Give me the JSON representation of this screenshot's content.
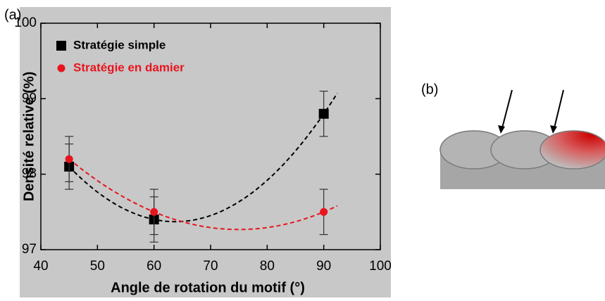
{
  "panel_labels": [
    "(a)",
    "(b)"
  ],
  "chart_data": {
    "type": "scatter",
    "xlabel": "Angle de rotation du motif (°)",
    "ylabel": "Densité relative (%)",
    "xlim": [
      40,
      100
    ],
    "xticks": [
      40,
      50,
      60,
      70,
      80,
      90,
      100
    ],
    "ylim": [
      97,
      100
    ],
    "yticks": [
      97,
      98,
      99,
      100
    ],
    "legend": "upper left",
    "series": [
      {
        "name": "Stratégie simple",
        "color": "#000000",
        "marker": "square",
        "x": [
          45,
          60,
          90
        ],
        "values": [
          98.1,
          97.4,
          98.8
        ],
        "errors": [
          0.3,
          0.3,
          0.3
        ]
      },
      {
        "name": "Stratégie en damier",
        "color": "#e8141e",
        "marker": "circle",
        "x": [
          45,
          60,
          90
        ],
        "values": [
          98.2,
          97.5,
          97.5
        ],
        "errors": [
          0.3,
          0.3,
          0.3
        ]
      }
    ]
  }
}
